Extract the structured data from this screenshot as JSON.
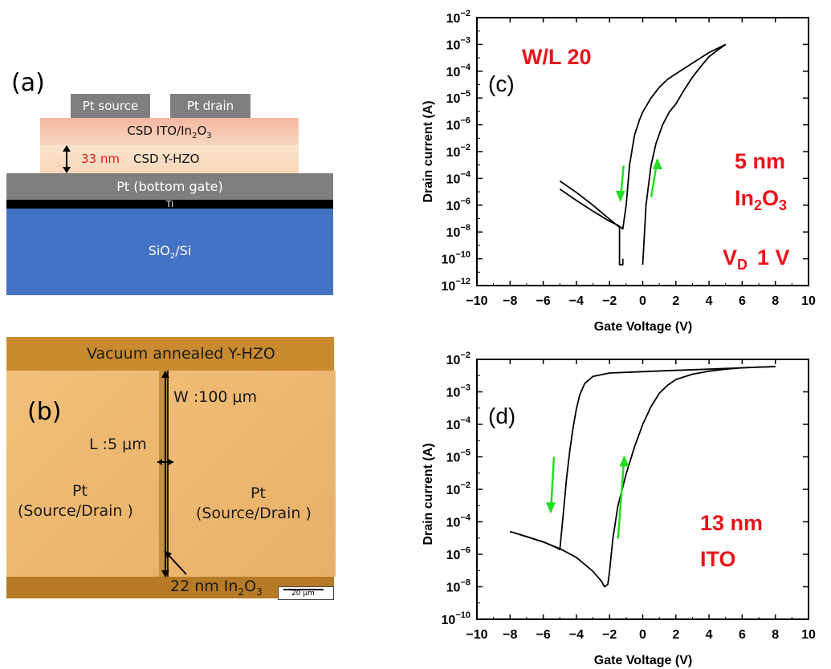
{
  "panel_a": {
    "label": "(a)",
    "pt_source": "Pt source",
    "pt_drain": "Pt drain",
    "ito_layer": "CSD ITO/In",
    "ito_sub2": "2",
    "ito_o": "O",
    "ito_sub3": "3",
    "thickness": "33 nm",
    "hzo_layer": "CSD Y-HZO",
    "gate_layer": "Pt (bottom gate)",
    "ti_layer": "Ti",
    "substrate": "SiO",
    "substrate_sub": "2",
    "substrate_tail": "/Si",
    "colors": {
      "ito": "#f7c7ae",
      "hzo": "#f8dcc2",
      "pt": "#7f7f7f",
      "ti": "#000000",
      "si": "#4472c4",
      "thickness_text": "#e8141b"
    }
  },
  "panel_b": {
    "label": "(b)",
    "title": "Vacuum annealed Y-HZO",
    "width": "W :100 μm",
    "length": "L :5 μm",
    "left_pad": "Pt",
    "left_pad_role": "(Source/Drain )",
    "right_pad": "Pt",
    "right_pad_role": "(Source/Drain )",
    "channel": "22 nm In",
    "channel_sub2": "2",
    "channel_o": "O",
    "channel_sub3": "3",
    "scale_bar": "20 μm"
  },
  "chart_data": [
    {
      "panel": "(c)",
      "type": "line",
      "xlabel": "Gate Voltage (V)",
      "ylabel": "Drain current (A)",
      "yscale": "log",
      "xlim": [
        -10,
        10
      ],
      "ylim": [
        1e-12,
        0.01
      ],
      "xticks": [
        -10,
        -8,
        -6,
        -4,
        -2,
        0,
        2,
        4,
        6,
        8,
        10
      ],
      "yticks": [
        "10-12",
        "10-10",
        "10-8",
        "10-6",
        "10-4",
        "10-2"
      ],
      "annotations": {
        "wl": "W/L  20",
        "thickness": "5 nm",
        "material": "In",
        "material_sub2": "2",
        "material_o": "O",
        "material_sub3": "3",
        "vd": "V",
        "vd_sub": "D",
        "vd_value": "1 V"
      },
      "series": [
        {
          "x": [
            -5,
            -4,
            -3,
            -2,
            -1.5,
            -1.2,
            -1.0,
            -0.8,
            -0.5,
            -0.2,
            0,
            0.5,
            1,
            1.5,
            2,
            3,
            4,
            5
          ],
          "y": [
            4e-09,
            1.5e-09,
            6e-10,
            2.5e-10,
            1.8e-10,
            1.3e-10,
            1e-09,
            3e-08,
            4e-07,
            1.5e-06,
            3e-06,
            1e-05,
            2.5e-05,
            5e-05,
            8e-05,
            0.0002,
            0.0005,
            0.001
          ]
        },
        {
          "x": [
            -5,
            -4,
            -3,
            -2,
            -1.4,
            -1.4,
            -1.2,
            -1.2
          ],
          "y": [
            8e-09,
            3e-09,
            1e-09,
            3e-10,
            1.5e-10,
            6e-12,
            6e-12,
            1e-11
          ]
        },
        {
          "x": [
            0,
            0.2,
            0.5,
            0.8,
            1.2,
            1.6,
            2,
            2.5,
            3,
            3.5,
            4,
            4.5,
            5
          ],
          "y": [
            6e-12,
            1e-09,
            3e-08,
            2e-07,
            1e-06,
            3e-06,
            6e-06,
            2e-05,
            6e-05,
            0.00015,
            0.00035,
            0.0006,
            0.001
          ]
        }
      ],
      "arrows": [
        {
          "direction": "down",
          "x": -1.3,
          "y_from": 3e-08,
          "y_to": 1.5e-09,
          "color": "#22dd22"
        },
        {
          "direction": "up",
          "x": 0.8,
          "y_from": 2e-09,
          "y_to": 5e-08,
          "color": "#22dd22"
        }
      ]
    },
    {
      "panel": "(d)",
      "type": "line",
      "xlabel": "Gate Voltage (V)",
      "ylabel": "Drain current (A)",
      "yscale": "log",
      "xlim": [
        -10,
        10
      ],
      "ylim": [
        1e-10,
        0.01
      ],
      "xticks": [
        -10,
        -8,
        -6,
        -4,
        -2,
        0,
        2,
        4,
        6,
        8,
        10
      ],
      "yticks": [
        "10-10",
        "10-8",
        "10-6",
        "10-4",
        "10-2"
      ],
      "annotations": {
        "thickness": "13 nm",
        "material": "ITO"
      },
      "series": [
        {
          "x": [
            -8,
            -7,
            -6,
            -5.2,
            -5,
            -4.8,
            -4.6,
            -4.4,
            -4.2,
            -4,
            -3.8,
            -3.5,
            -3,
            -2,
            0,
            2,
            4,
            6,
            8
          ],
          "y": [
            5e-08,
            3.5e-08,
            2.4e-08,
            1.6e-08,
            1.4e-08,
            1.6e-07,
            2e-06,
            1.5e-05,
            8e-05,
            0.0003,
            0.0008,
            0.0018,
            0.003,
            0.0038,
            0.0042,
            0.0046,
            0.005,
            0.0055,
            0.006
          ]
        },
        {
          "x": [
            -8,
            -7,
            -6,
            -5,
            -4,
            -3,
            -2.5,
            -2.3,
            -2.1,
            -2,
            -1.8,
            -1.5,
            -1,
            -0.5,
            0,
            0.5,
            1,
            1.5,
            2,
            3,
            4,
            5,
            6,
            7,
            8
          ],
          "y": [
            5e-08,
            3.5e-08,
            2.4e-08,
            1.5e-08,
            8e-09,
            3e-09,
            1.5e-09,
            1e-09,
            1.2e-09,
            3e-09,
            3e-08,
            3e-07,
            3e-06,
            2e-05,
            0.0001,
            0.00035,
            0.0009,
            0.0016,
            0.0024,
            0.0035,
            0.0043,
            0.005,
            0.0055,
            0.0058,
            0.006
          ]
        }
      ],
      "arrows": [
        {
          "direction": "down",
          "x": -5.5,
          "y_from": 1e-05,
          "y_to": 2e-07,
          "color": "#22dd22"
        },
        {
          "direction": "up",
          "x": -1.2,
          "y_from": 3e-08,
          "y_to": 1e-05,
          "color": "#22dd22"
        }
      ]
    }
  ]
}
